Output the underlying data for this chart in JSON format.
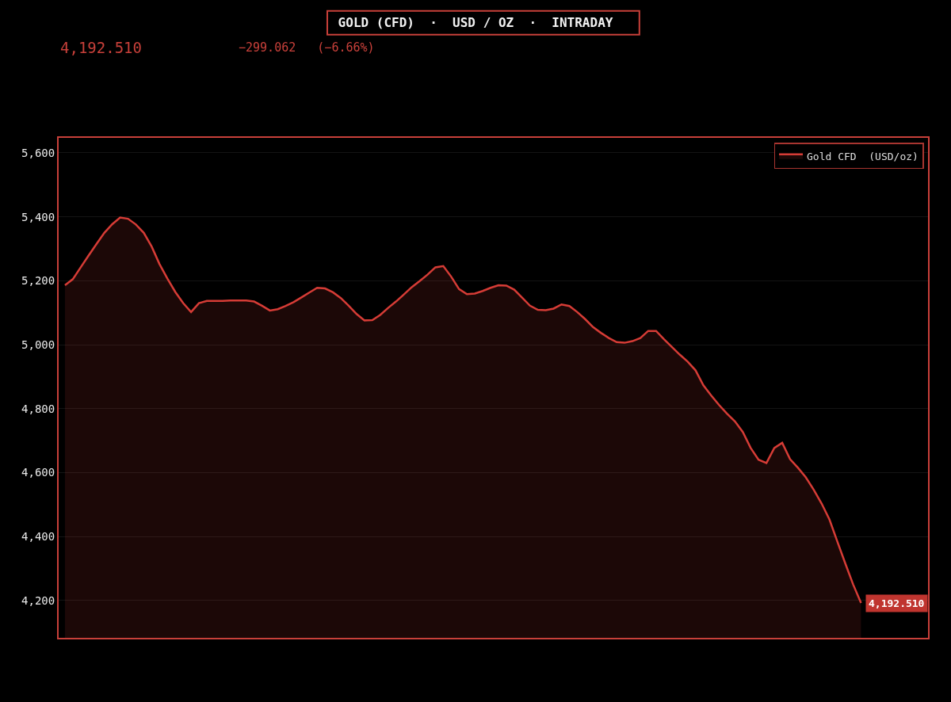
{
  "chart_data": {
    "type": "area",
    "title": "GOLD (CFD)  ·  USD / OZ  ·  INTRADAY",
    "annotations": [
      "4,192.510",
      "−299.062   (−6.66%)",
      "4,192.510"
    ],
    "categories": [
      null,
      null,
      null,
      null,
      null,
      null,
      null,
      null,
      null,
      null,
      null,
      null,
      null,
      null,
      null,
      null,
      null,
      null,
      null,
      null,
      null,
      null,
      null,
      null,
      null,
      null,
      null,
      null,
      null,
      null,
      null,
      null,
      null,
      null,
      null,
      null,
      null,
      null,
      null,
      null,
      null,
      null,
      null,
      null,
      null,
      null,
      null,
      null,
      null,
      null,
      null,
      null,
      null,
      null,
      null,
      null,
      null,
      null,
      null,
      null,
      null,
      null,
      null,
      null,
      null,
      null,
      null,
      null,
      null,
      null,
      null,
      null,
      null,
      null,
      null,
      null,
      null,
      null,
      null,
      null,
      null,
      null,
      null,
      null,
      null,
      null,
      null,
      null,
      null,
      null,
      null,
      null,
      null,
      null,
      null,
      null,
      null,
      null,
      null,
      null,
      null,
      null,
      null,
      null,
      null,
      null,
      null,
      null,
      null,
      null
    ],
    "series": [
      {
        "name": "Gold CFD  (USD/oz)",
        "color": "#d63c36",
        "values": [
          5186,
          5205,
          5242,
          5279,
          5315,
          5350,
          5377,
          5398,
          5394,
          5376,
          5350,
          5307,
          5252,
          5207,
          5165,
          5130,
          5102,
          5130,
          5137,
          5137,
          5137,
          5138,
          5138,
          5138,
          5135,
          5122,
          5107,
          5111,
          5121,
          5133,
          5148,
          5163,
          5178,
          5176,
          5164,
          5146,
          5122,
          5096,
          5076,
          5077,
          5093,
          5115,
          5135,
          5157,
          5180,
          5199,
          5219,
          5242,
          5246,
          5213,
          5174,
          5158,
          5160,
          5168,
          5178,
          5186,
          5185,
          5172,
          5147,
          5122,
          5109,
          5108,
          5113,
          5126,
          5121,
          5102,
          5080,
          5055,
          5037,
          5021,
          5008,
          5006,
          5011,
          5021,
          5043,
          5043,
          5017,
          4993,
          4969,
          4947,
          4920,
          4873,
          4841,
          4811,
          4784,
          4760,
          4727,
          4677,
          4640,
          4630,
          4677,
          4693,
          4642,
          4615,
          4585,
          4546,
          4503,
          4453,
          4384,
          4316,
          4250,
          4192,
          null,
          null,
          null,
          null,
          null,
          null,
          null,
          null
        ]
      }
    ],
    "ylim": [
      4083,
      5647
    ],
    "yticks": [
      {
        "value": 4200,
        "label": "4,200"
      },
      {
        "value": 4400,
        "label": "4,400"
      },
      {
        "value": 4600,
        "label": "4,600"
      },
      {
        "value": 4800,
        "label": "4,800"
      },
      {
        "value": 5000,
        "label": "5,000"
      },
      {
        "value": 5200,
        "label": "5,200"
      },
      {
        "value": 5400,
        "label": "5,400"
      },
      {
        "value": 5600,
        "label": "5,600"
      }
    ],
    "grid": "y",
    "legend": "top right",
    "tick_labels": "y",
    "marker": "none",
    "line_style": "solid"
  }
}
